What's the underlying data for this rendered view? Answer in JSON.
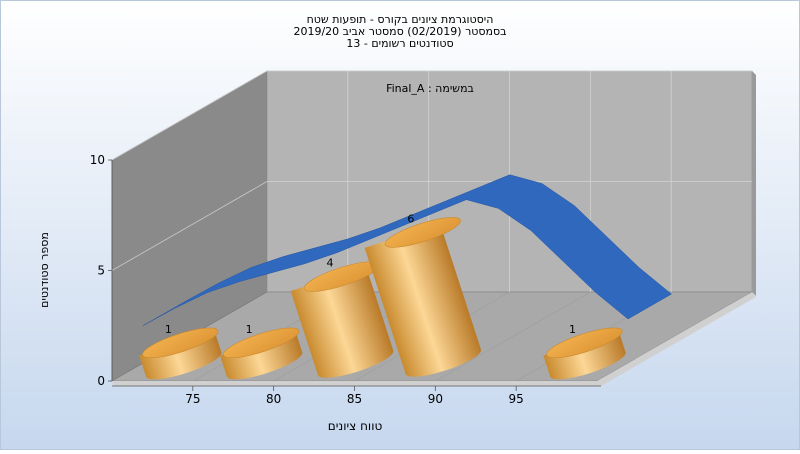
{
  "chart_data": {
    "type": "bar",
    "title": [
      "היסטוגרמת ציונים בקורס - תופעות שטח",
      "בסמסטר  (02/2019)  סמסטר אביב 2019/20",
      "סטודנטים רשומים - 13"
    ],
    "annotation": "במשימה : Final_A",
    "xlabel": "טווח ציונים",
    "ylabel": "מספר סטודנטים",
    "x_ticks": [
      75,
      80,
      85,
      90,
      95
    ],
    "y_ticks": [
      0,
      5,
      10
    ],
    "ylim": [
      0,
      10
    ],
    "xlim": [
      70,
      100
    ],
    "bins": [
      72.5,
      77.5,
      82.5,
      87.5,
      92.5,
      97.5
    ],
    "values": [
      1,
      1,
      4,
      6,
      0,
      1
    ],
    "curve": {
      "x": [
        70,
        72,
        74,
        76,
        78,
        80,
        82,
        84,
        86,
        88,
        90,
        92,
        94,
        96,
        98,
        100
      ],
      "y": [
        1.7,
        2.5,
        3.2,
        3.7,
        4.1,
        4.5,
        5.0,
        5.6,
        6.2,
        6.8,
        7.4,
        7.0,
        6.0,
        4.6,
        3.2,
        2.0
      ]
    },
    "colors": {
      "bar": "#e8a140",
      "bar_light": "#fcd796",
      "bar_dark": "#b97a28",
      "curve": "#2f68bd",
      "back_wall": "#b4b4b4",
      "side_wall": "#8a8a8a",
      "floor": "#a9a9a9",
      "background_top": "#ffffff",
      "background_bottom": "#c6d7ee"
    },
    "grid": true
  }
}
